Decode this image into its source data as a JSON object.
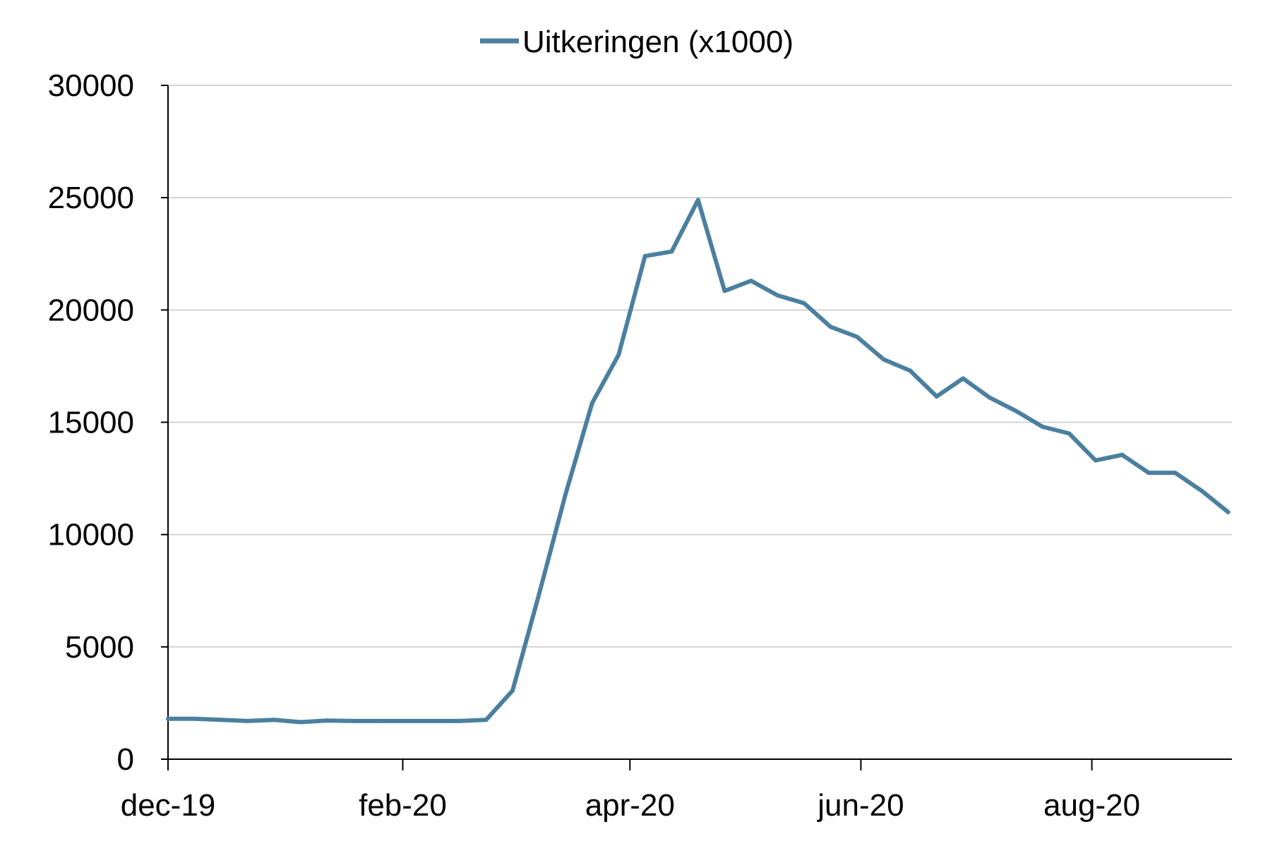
{
  "chart_data": {
    "type": "line",
    "legend": {
      "placement": "top-center"
    },
    "grid": true,
    "colors": {
      "series": "#4a7f9f",
      "grid": "#c8c8c8",
      "axis": "#000000"
    },
    "xlim": [
      "2019-12-01",
      "2020-09-07"
    ],
    "ylim": [
      0,
      30000
    ],
    "y_ticks": [
      0,
      5000,
      10000,
      15000,
      20000,
      25000,
      30000
    ],
    "x_ticks": [
      {
        "date": "2019-12-01",
        "label": "dec-19"
      },
      {
        "date": "2020-02-01",
        "label": "feb-20"
      },
      {
        "date": "2020-04-01",
        "label": "apr-20"
      },
      {
        "date": "2020-06-01",
        "label": "jun-20"
      },
      {
        "date": "2020-08-01",
        "label": "aug-20"
      }
    ],
    "series": [
      {
        "name": "Uitkeringen (x1000)",
        "points": [
          [
            "2019-12-01",
            1800
          ],
          [
            "2019-12-08",
            1800
          ],
          [
            "2019-12-15",
            1750
          ],
          [
            "2019-12-22",
            1700
          ],
          [
            "2019-12-29",
            1750
          ],
          [
            "2020-01-05",
            1650
          ],
          [
            "2020-01-12",
            1720
          ],
          [
            "2020-01-19",
            1700
          ],
          [
            "2020-01-26",
            1700
          ],
          [
            "2020-02-02",
            1700
          ],
          [
            "2020-02-09",
            1700
          ],
          [
            "2020-02-16",
            1700
          ],
          [
            "2020-02-23",
            1750
          ],
          [
            "2020-03-01",
            3050
          ],
          [
            "2020-03-08",
            7350
          ],
          [
            "2020-03-15",
            11800
          ],
          [
            "2020-03-22",
            15850
          ],
          [
            "2020-03-29",
            18000
          ],
          [
            "2020-04-05",
            22400
          ],
          [
            "2020-04-12",
            22600
          ],
          [
            "2020-04-19",
            24900
          ],
          [
            "2020-04-26",
            20850
          ],
          [
            "2020-05-03",
            21300
          ],
          [
            "2020-05-10",
            20650
          ],
          [
            "2020-05-17",
            20300
          ],
          [
            "2020-05-24",
            19250
          ],
          [
            "2020-05-31",
            18800
          ],
          [
            "2020-06-07",
            17800
          ],
          [
            "2020-06-14",
            17300
          ],
          [
            "2020-06-21",
            16150
          ],
          [
            "2020-06-28",
            16950
          ],
          [
            "2020-07-05",
            16100
          ],
          [
            "2020-07-12",
            15500
          ],
          [
            "2020-07-19",
            14800
          ],
          [
            "2020-07-26",
            14500
          ],
          [
            "2020-08-02",
            13300
          ],
          [
            "2020-08-09",
            13550
          ],
          [
            "2020-08-16",
            12750
          ],
          [
            "2020-08-23",
            12750
          ],
          [
            "2020-08-30",
            11950
          ],
          [
            "2020-09-06",
            11000
          ]
        ]
      }
    ]
  }
}
